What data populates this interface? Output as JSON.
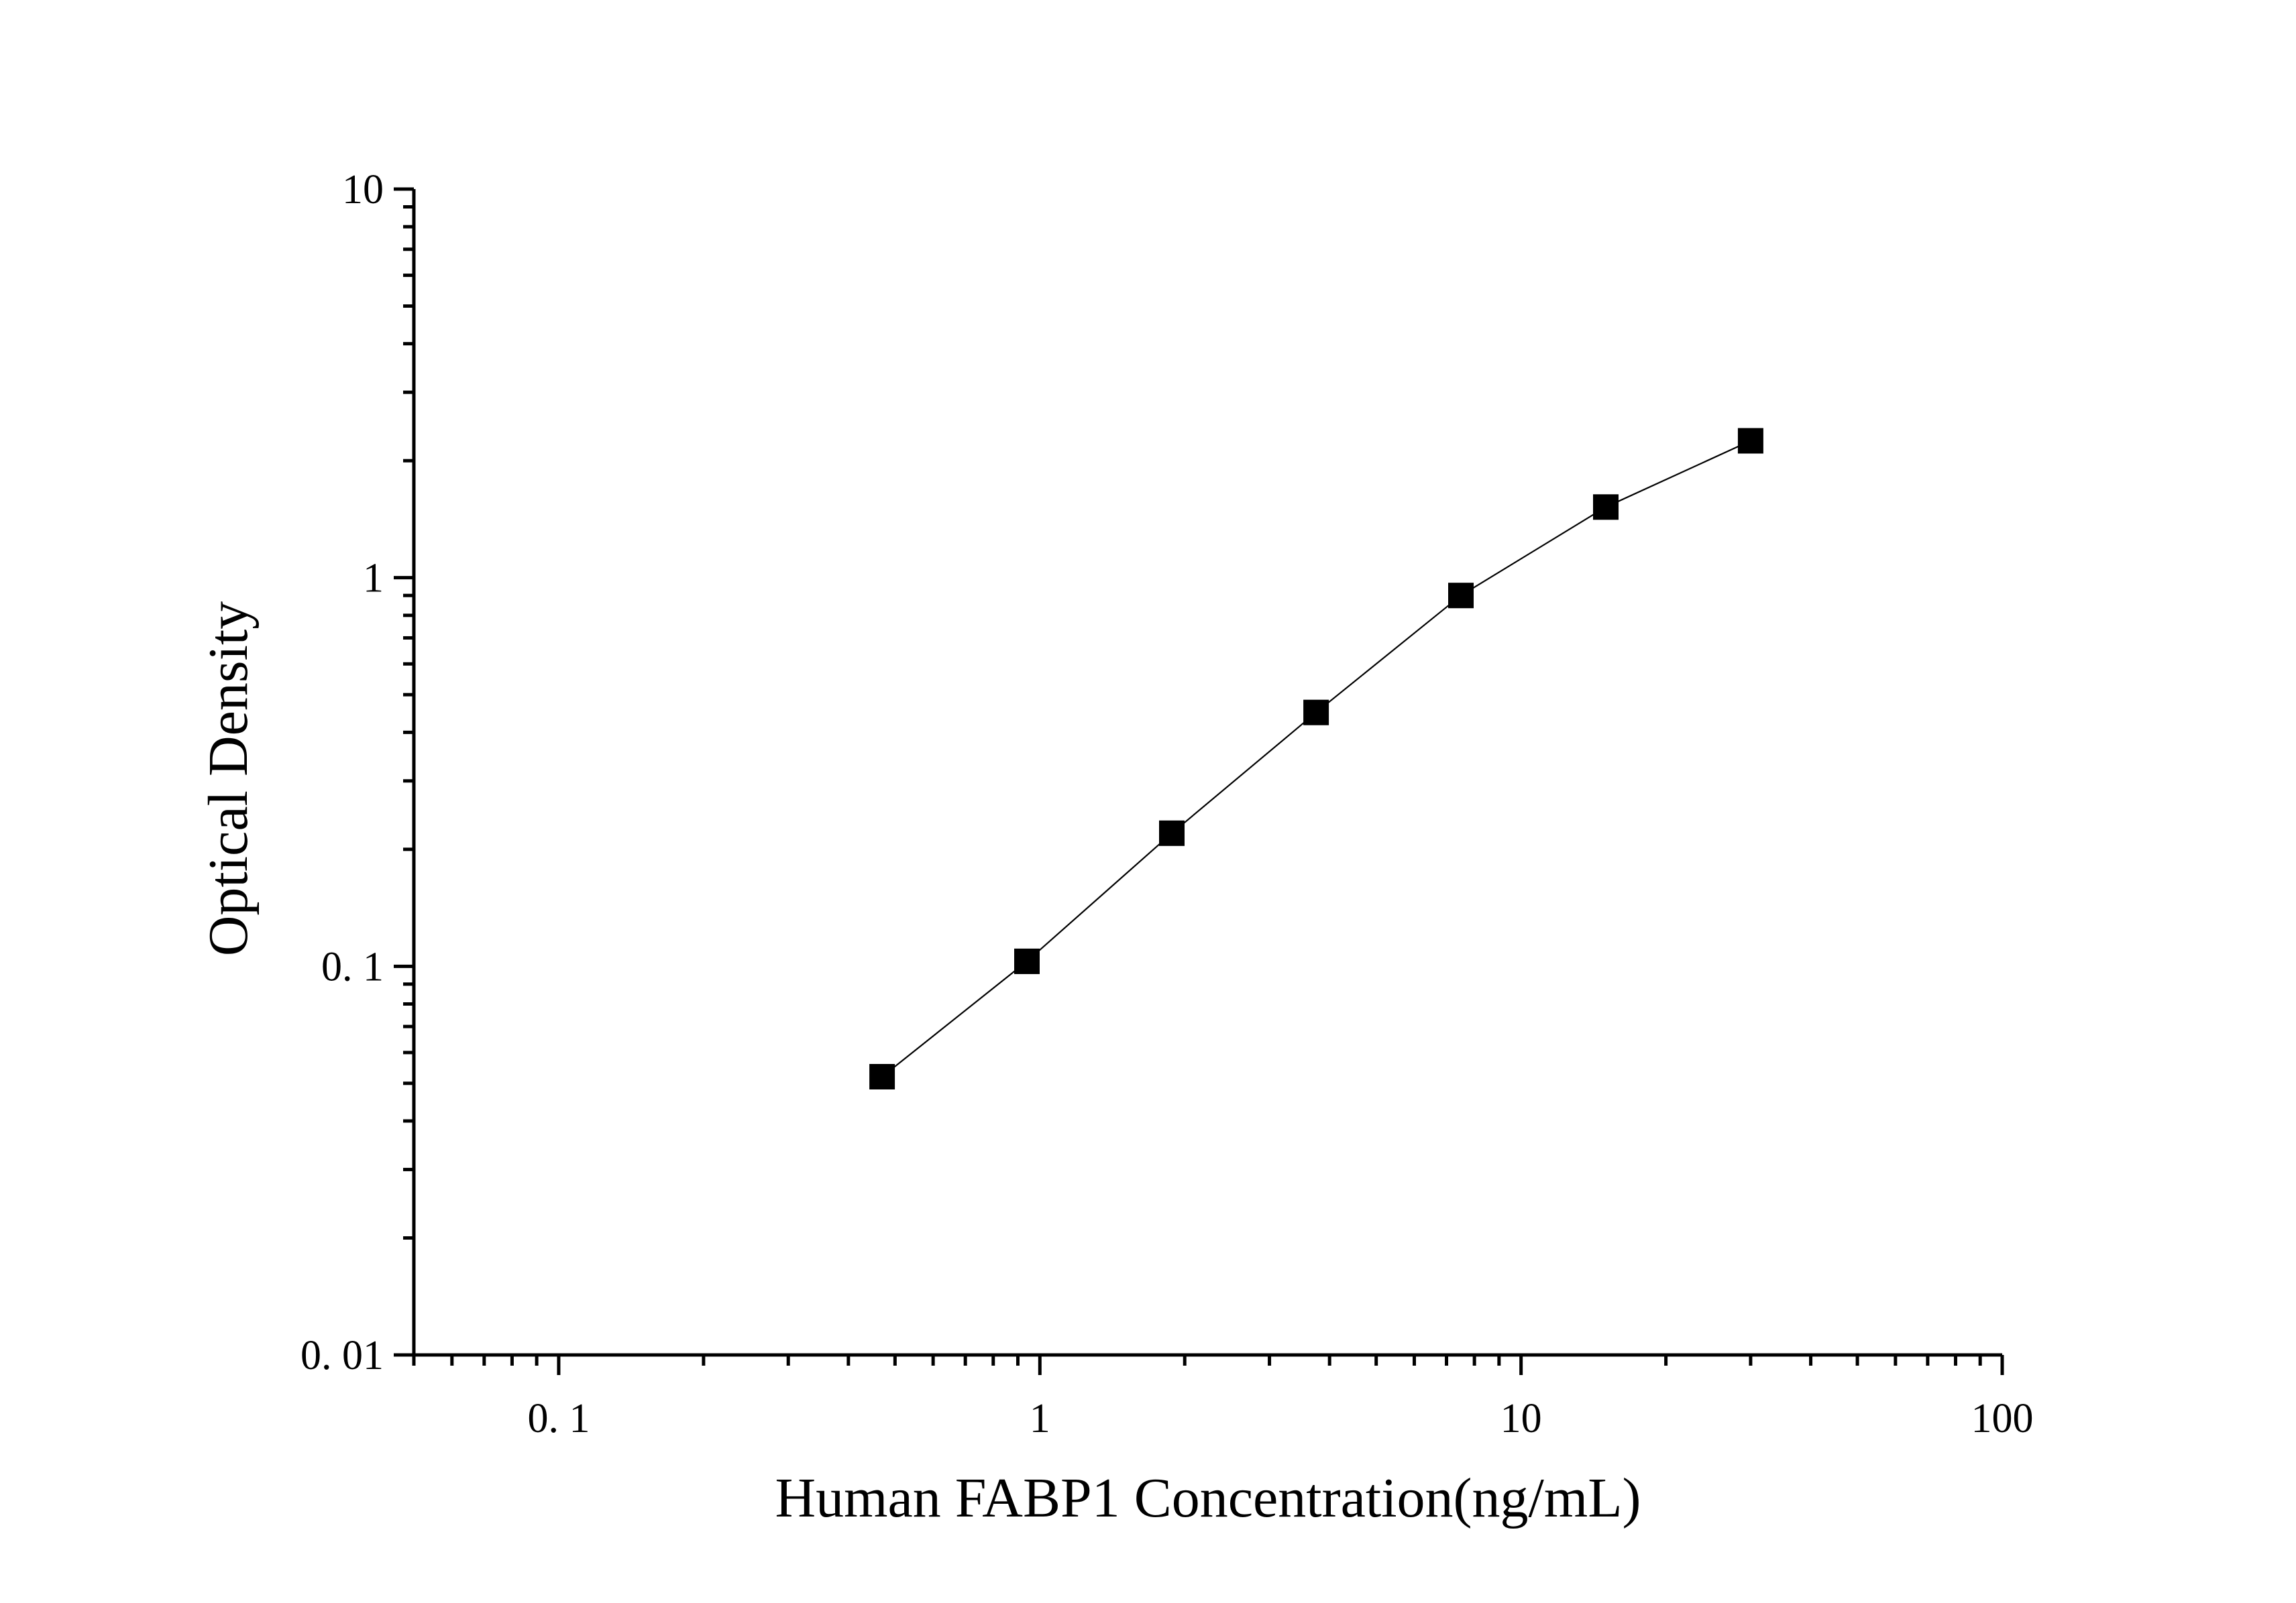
{
  "chart_data": {
    "type": "line",
    "title": "",
    "xlabel": "Human FABP1 Concentration(ng/mL)",
    "ylabel": "Optical Density",
    "x_scale": "log",
    "y_scale": "log",
    "xlim": [
      0.05,
      100
    ],
    "ylim": [
      0.01,
      10
    ],
    "x_ticks": [
      {
        "value": 0.1,
        "label": "0. 1"
      },
      {
        "value": 1,
        "label": "1"
      },
      {
        "value": 10,
        "label": "10"
      },
      {
        "value": 100,
        "label": "100"
      }
    ],
    "y_ticks": [
      {
        "value": 0.01,
        "label": "0. 01"
      },
      {
        "value": 0.1,
        "label": "0. 1"
      },
      {
        "value": 1,
        "label": "1"
      },
      {
        "value": 10,
        "label": "10"
      }
    ],
    "grid": false,
    "legend": "none",
    "marker": "square",
    "series_color": "#000000",
    "series": [
      {
        "x": [
          0.47,
          0.94,
          1.88,
          3.75,
          7.5,
          15,
          30
        ],
        "y": [
          0.052,
          0.103,
          0.22,
          0.45,
          0.9,
          1.52,
          2.25
        ]
      }
    ]
  }
}
